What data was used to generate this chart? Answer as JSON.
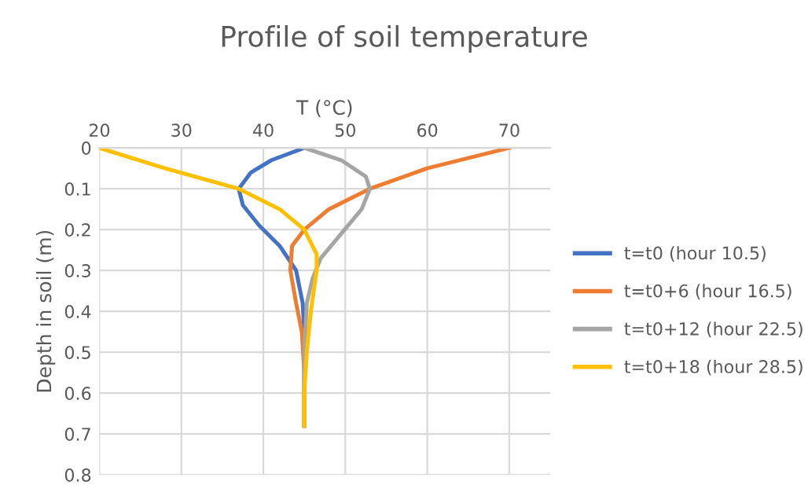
{
  "chart_data": {
    "type": "line",
    "title": "Profile of soil temperature",
    "xlabel": "T (°C)",
    "ylabel": "Depth in soil (m)",
    "xlim": [
      20,
      75
    ],
    "xticks": [
      20,
      30,
      40,
      50,
      60,
      70
    ],
    "ylim": [
      0.8,
      0
    ],
    "yticks": [
      0,
      0.1,
      0.2,
      0.3,
      0.4,
      0.5,
      0.6,
      0.7,
      0.8
    ],
    "grid": true,
    "legend": "right",
    "marker": "none",
    "line_style": "solid",
    "series": [
      {
        "name": "t=t0 (hour 10.5)",
        "color": "#4472c4",
        "x": [
          45,
          41,
          38.5,
          37,
          37.5,
          39.5,
          42,
          44,
          44.8,
          45,
          45,
          45
        ],
        "values": [
          0,
          0.03,
          0.06,
          0.1,
          0.14,
          0.19,
          0.24,
          0.3,
          0.38,
          0.45,
          0.55,
          0.68
        ]
      },
      {
        "name": "t=t0+6 (hour 16.5)",
        "color": "#ed7d31",
        "x": [
          70,
          60,
          53,
          48,
          45,
          43.5,
          43.3,
          44,
          44.7,
          45,
          45
        ],
        "values": [
          0,
          0.05,
          0.1,
          0.15,
          0.2,
          0.24,
          0.3,
          0.38,
          0.45,
          0.55,
          0.68
        ]
      },
      {
        "name": "t=t0+12 (hour 22.5)",
        "color": "#a5a5a5",
        "x": [
          45,
          49.5,
          52.5,
          53,
          52,
          49.5,
          47,
          46,
          45.3,
          45,
          45
        ],
        "values": [
          0,
          0.03,
          0.07,
          0.1,
          0.15,
          0.21,
          0.27,
          0.32,
          0.38,
          0.5,
          0.68
        ]
      },
      {
        "name": "t=t0+18 (hour 28.5)",
        "color": "#ffc000",
        "x": [
          20,
          28,
          37,
          42,
          45,
          46.5,
          46.5,
          45.8,
          45.3,
          45,
          45
        ],
        "values": [
          0,
          0.05,
          0.1,
          0.15,
          0.2,
          0.26,
          0.3,
          0.4,
          0.5,
          0.6,
          0.68
        ]
      }
    ]
  }
}
